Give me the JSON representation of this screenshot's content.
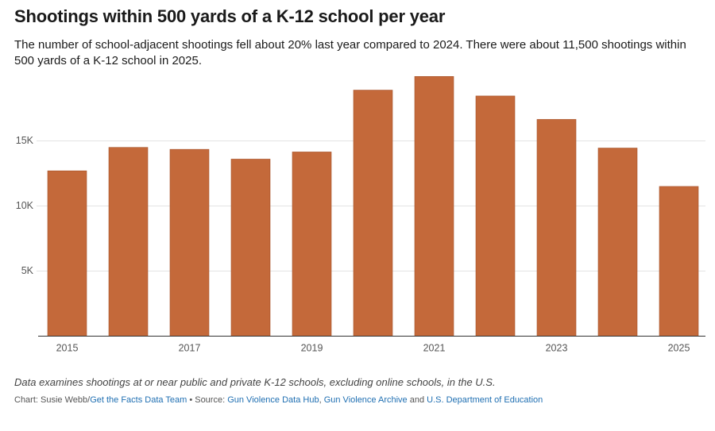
{
  "chart_data": {
    "type": "bar",
    "title": "Shootings within 500 yards of a K-12 school per year",
    "subtitle": "The number of school-adjacent shootings fell about 20% last year compared to 2024. There were about 11,500 shootings within 500 yards of a K-12 school in 2025.",
    "categories": [
      "2015",
      null,
      "2017",
      null,
      "2019",
      null,
      "2021",
      null,
      "2023",
      null,
      "2025"
    ],
    "values": [
      12700,
      14500,
      14350,
      13600,
      14150,
      18900,
      19950,
      18450,
      16650,
      14450,
      11500
    ],
    "color": "#c4693a",
    "ylim": [
      0,
      20000
    ],
    "yticks": [
      {
        "value": 5000,
        "label": "5K"
      },
      {
        "value": 10000,
        "label": "10K"
      },
      {
        "value": 15000,
        "label": "15K"
      }
    ],
    "grid": true,
    "note": "Data examines shootings at or near public and private K-12 schools, excluding online schools, in the U.S.",
    "credits": [
      {
        "text": "Chart: Susie Webb/"
      },
      {
        "text": "Get the Facts Data Team",
        "link": true
      },
      {
        "text": " • Source: "
      },
      {
        "text": "Gun Violence Data Hub",
        "link": true
      },
      {
        "text": ", "
      },
      {
        "text": "Gun Violence Archive",
        "link": true
      },
      {
        "text": " and "
      },
      {
        "text": "U.S. Department of Education",
        "link": true
      }
    ]
  }
}
